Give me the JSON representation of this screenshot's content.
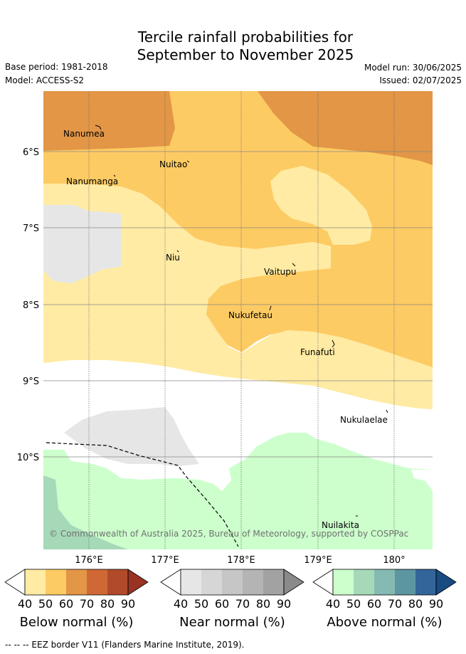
{
  "title": {
    "line1": "Tercile rainfall probabilities for",
    "line2": "September to November 2025"
  },
  "meta": {
    "base_period": "Base period: 1981-2018",
    "model": "Model: ACCESS-S2",
    "model_run": "Model run: 30/06/2025",
    "issued": "Issued: 02/07/2025"
  },
  "axes": {
    "lat_labels": [
      "6°S",
      "7°S",
      "8°S",
      "9°S",
      "10°S"
    ],
    "lon_labels": [
      "176°E",
      "177°E",
      "178°E",
      "179°E",
      "180°"
    ]
  },
  "places": [
    {
      "name": "Nanumea"
    },
    {
      "name": "Nuitao"
    },
    {
      "name": "Nanumanga"
    },
    {
      "name": "Niu"
    },
    {
      "name": "Vaitupu"
    },
    {
      "name": "Nukufetau"
    },
    {
      "name": "Funafuti"
    },
    {
      "name": "Nukulaelae"
    },
    {
      "name": "Nuilakita"
    }
  ],
  "copyright": "© Commonwealth of Australia 2025, Bureau of Meteorology, supported by COSPPac",
  "colorbars": [
    {
      "title": "Below normal (%)",
      "ticks": [
        "40",
        "50",
        "60",
        "70",
        "80",
        "90"
      ],
      "colors": [
        "#ffffff",
        "#ffeba3",
        "#fdcb63",
        "#e29646",
        "#d06836",
        "#b04a2a",
        "#9a3322"
      ]
    },
    {
      "title": "Near normal (%)",
      "ticks": [
        "40",
        "50",
        "60",
        "70",
        "80",
        "90"
      ],
      "colors": [
        "#ffffff",
        "#e6e6e6",
        "#d6d6d6",
        "#c6c6c6",
        "#b4b4b4",
        "#a2a2a2",
        "#8a8a8a"
      ]
    },
    {
      "title": "Above normal (%)",
      "ticks": [
        "40",
        "50",
        "60",
        "70",
        "80",
        "90"
      ],
      "colors": [
        "#ffffff",
        "#ccffcc",
        "#a6d9b8",
        "#84bab1",
        "#5c97a1",
        "#33659a",
        "#174b82"
      ]
    }
  ],
  "footer": "--  --  -- EEZ border V11 (Flanders Marine Institute, 2019)."
}
